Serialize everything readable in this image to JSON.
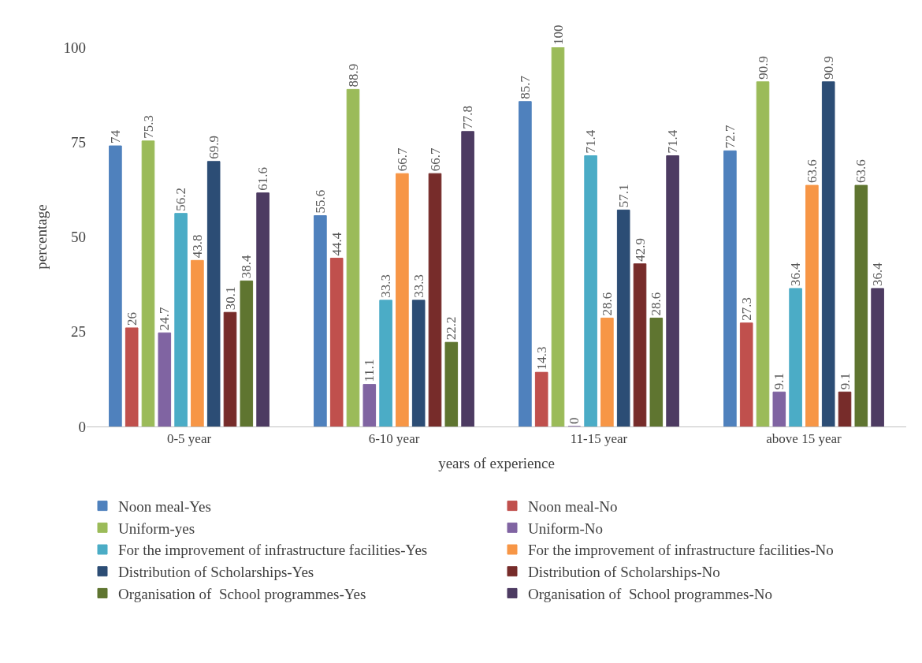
{
  "chart_data": {
    "type": "bar",
    "xlabel": "years of experience",
    "ylabel": "percentage",
    "categories": [
      "0-5 year",
      "6-10 year",
      "11-15 year",
      "above 15 year"
    ],
    "series": [
      {
        "name": "Noon meal-Yes",
        "color": "#4f81bd",
        "values": [
          74,
          55.6,
          85.7,
          72.7
        ]
      },
      {
        "name": "Noon meal-No",
        "color": "#c0504d",
        "values": [
          26,
          44.4,
          14.3,
          27.3
        ]
      },
      {
        "name": "Uniform-yes",
        "color": "#9bbb59",
        "values": [
          75.3,
          88.9,
          100,
          90.9
        ]
      },
      {
        "name": "Uniform-No",
        "color": "#8064a2",
        "values": [
          24.7,
          11.1,
          0,
          9.1
        ]
      },
      {
        "name": "For the improvement of infrastructure facilities-Yes",
        "color": "#4bacc6",
        "values": [
          56.2,
          33.3,
          71.4,
          36.4
        ]
      },
      {
        "name": "For the improvement of infrastructure facilities-No",
        "color": "#f79646",
        "values": [
          43.8,
          66.7,
          28.6,
          63.6
        ]
      },
      {
        "name": "Distribution of Scholarships-Yes",
        "color": "#2c4d75",
        "values": [
          69.9,
          33.3,
          57.1,
          90.9
        ]
      },
      {
        "name": "Distribution of Scholarships-No",
        "color": "#772c2a",
        "values": [
          30.1,
          66.7,
          42.9,
          9.1
        ]
      },
      {
        "name": "Organisation of  School programmes-Yes",
        "color": "#5f7530",
        "values": [
          38.4,
          22.2,
          28.6,
          63.6
        ]
      },
      {
        "name": "Organisation of  School programmes-No",
        "color": "#4d3b62",
        "values": [
          61.6,
          77.8,
          71.4,
          36.4
        ]
      }
    ],
    "ylim": [
      0,
      100
    ],
    "yticks": [
      0,
      25,
      50,
      75,
      100
    ],
    "legend": "bottom",
    "data_labels": true
  }
}
